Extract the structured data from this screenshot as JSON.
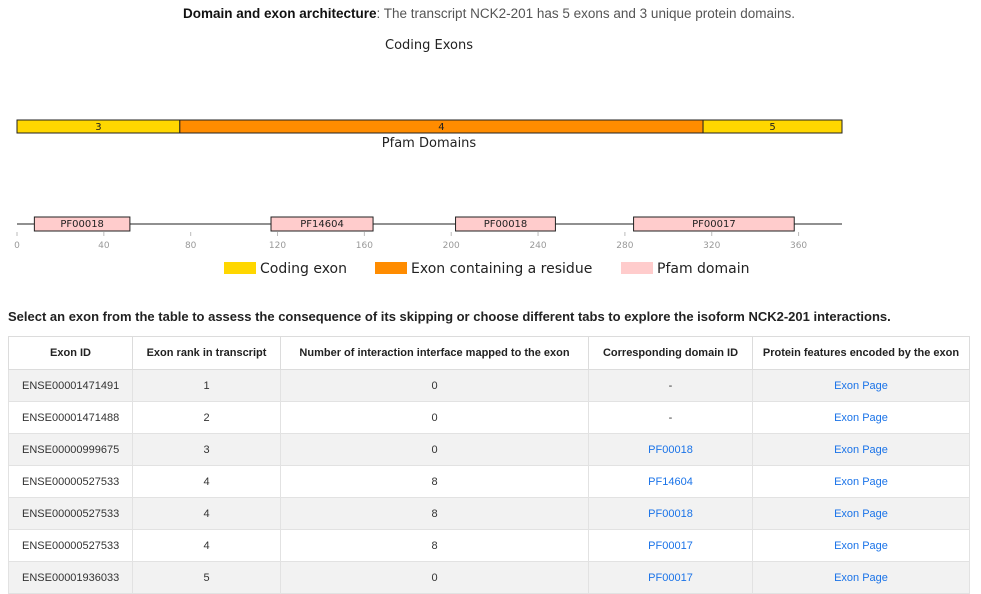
{
  "header": {
    "title_bold": "Domain and exon architecture",
    "title_rest": ": The transcript NCK2-201 has 5 exons and 3 unique protein domains."
  },
  "figure": {
    "exon_track_title": "Coding Exons",
    "domain_track_title": "Pfam Domains",
    "protein_length": 380,
    "exons": [
      {
        "label": "3",
        "start": 0,
        "end": 75,
        "type": "coding"
      },
      {
        "label": "4",
        "start": 75,
        "end": 316,
        "type": "residue"
      },
      {
        "label": "5",
        "start": 316,
        "end": 380,
        "type": "coding"
      }
    ],
    "domains": [
      {
        "label": "PF00018",
        "start": 8,
        "end": 52
      },
      {
        "label": "PF14604",
        "start": 117,
        "end": 164
      },
      {
        "label": "PF00018",
        "start": 202,
        "end": 248
      },
      {
        "label": "PF00017",
        "start": 284,
        "end": 358
      }
    ],
    "ticks": [
      0,
      40,
      80,
      120,
      160,
      200,
      240,
      280,
      320,
      360
    ],
    "legend": [
      {
        "label": "Coding exon",
        "color": "#FFD700"
      },
      {
        "label": "Exon containing a residue",
        "color": "#FF8C00"
      },
      {
        "label": "Pfam domain",
        "color": "#FFCCCC"
      }
    ],
    "colors": {
      "coding": "#FFD700",
      "residue": "#FF8C00",
      "domain": "#FFCCCC"
    }
  },
  "prompt": "Select an exon from the table to assess the consequence of its skipping or choose different tabs to explore the isoform NCK2-201 interactions.",
  "table": {
    "headers": [
      "Exon ID",
      "Exon rank in transcript",
      "Number of interaction interface mapped to the exon",
      "Corresponding domain ID",
      "Protein features encoded by the exon"
    ],
    "rows": [
      [
        "ENSE00001471491",
        "1",
        "0",
        "-",
        "Exon Page"
      ],
      [
        "ENSE00001471488",
        "2",
        "0",
        "-",
        "Exon Page"
      ],
      [
        "ENSE00000999675",
        "3",
        "0",
        "PF00018",
        "Exon Page"
      ],
      [
        "ENSE00000527533",
        "4",
        "8",
        "PF14604",
        "Exon Page"
      ],
      [
        "ENSE00000527533",
        "4",
        "8",
        "PF00018",
        "Exon Page"
      ],
      [
        "ENSE00000527533",
        "4",
        "8",
        "PF00017",
        "Exon Page"
      ],
      [
        "ENSE00001936033",
        "5",
        "0",
        "PF00017",
        "Exon Page"
      ]
    ]
  }
}
